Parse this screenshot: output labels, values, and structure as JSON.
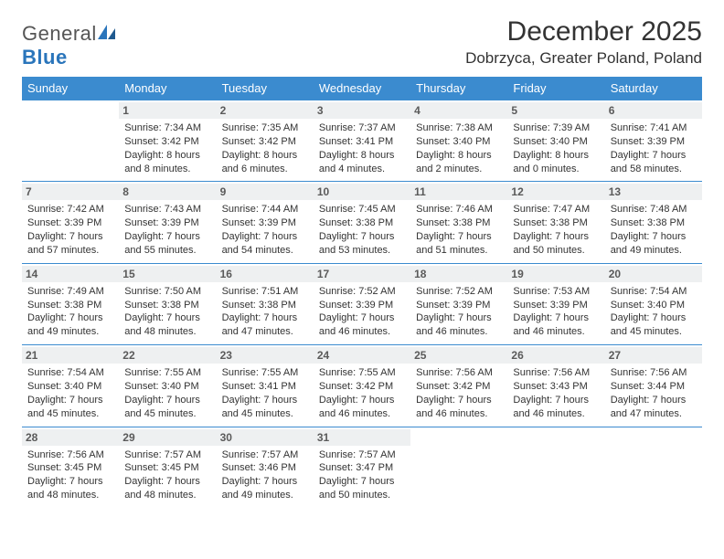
{
  "brand": {
    "name1": "General",
    "name2": "Blue"
  },
  "title": "December 2025",
  "location": "Dobrzyca, Greater Poland, Poland",
  "colors": {
    "accent": "#3b8bcf",
    "header_bg": "#3b8bcf",
    "daynum_bg": "#eef0f1",
    "text": "#333333",
    "brand_gray": "#555555",
    "brand_blue": "#2a75bb"
  },
  "typography": {
    "title_fontsize": 30,
    "location_fontsize": 17,
    "weekday_fontsize": 13,
    "daynum_fontsize": 12,
    "body_fontsize": 11
  },
  "weekdays": [
    "Sunday",
    "Monday",
    "Tuesday",
    "Wednesday",
    "Thursday",
    "Friday",
    "Saturday"
  ],
  "calendar": {
    "type": "table",
    "columns": 7,
    "rows": 5,
    "cells": [
      [
        null,
        {
          "day": "1",
          "sunrise": "Sunrise: 7:34 AM",
          "sunset": "Sunset: 3:42 PM",
          "daylight": "Daylight: 8 hours and 8 minutes."
        },
        {
          "day": "2",
          "sunrise": "Sunrise: 7:35 AM",
          "sunset": "Sunset: 3:42 PM",
          "daylight": "Daylight: 8 hours and 6 minutes."
        },
        {
          "day": "3",
          "sunrise": "Sunrise: 7:37 AM",
          "sunset": "Sunset: 3:41 PM",
          "daylight": "Daylight: 8 hours and 4 minutes."
        },
        {
          "day": "4",
          "sunrise": "Sunrise: 7:38 AM",
          "sunset": "Sunset: 3:40 PM",
          "daylight": "Daylight: 8 hours and 2 minutes."
        },
        {
          "day": "5",
          "sunrise": "Sunrise: 7:39 AM",
          "sunset": "Sunset: 3:40 PM",
          "daylight": "Daylight: 8 hours and 0 minutes."
        },
        {
          "day": "6",
          "sunrise": "Sunrise: 7:41 AM",
          "sunset": "Sunset: 3:39 PM",
          "daylight": "Daylight: 7 hours and 58 minutes."
        }
      ],
      [
        {
          "day": "7",
          "sunrise": "Sunrise: 7:42 AM",
          "sunset": "Sunset: 3:39 PM",
          "daylight": "Daylight: 7 hours and 57 minutes."
        },
        {
          "day": "8",
          "sunrise": "Sunrise: 7:43 AM",
          "sunset": "Sunset: 3:39 PM",
          "daylight": "Daylight: 7 hours and 55 minutes."
        },
        {
          "day": "9",
          "sunrise": "Sunrise: 7:44 AM",
          "sunset": "Sunset: 3:39 PM",
          "daylight": "Daylight: 7 hours and 54 minutes."
        },
        {
          "day": "10",
          "sunrise": "Sunrise: 7:45 AM",
          "sunset": "Sunset: 3:38 PM",
          "daylight": "Daylight: 7 hours and 53 minutes."
        },
        {
          "day": "11",
          "sunrise": "Sunrise: 7:46 AM",
          "sunset": "Sunset: 3:38 PM",
          "daylight": "Daylight: 7 hours and 51 minutes."
        },
        {
          "day": "12",
          "sunrise": "Sunrise: 7:47 AM",
          "sunset": "Sunset: 3:38 PM",
          "daylight": "Daylight: 7 hours and 50 minutes."
        },
        {
          "day": "13",
          "sunrise": "Sunrise: 7:48 AM",
          "sunset": "Sunset: 3:38 PM",
          "daylight": "Daylight: 7 hours and 49 minutes."
        }
      ],
      [
        {
          "day": "14",
          "sunrise": "Sunrise: 7:49 AM",
          "sunset": "Sunset: 3:38 PM",
          "daylight": "Daylight: 7 hours and 49 minutes."
        },
        {
          "day": "15",
          "sunrise": "Sunrise: 7:50 AM",
          "sunset": "Sunset: 3:38 PM",
          "daylight": "Daylight: 7 hours and 48 minutes."
        },
        {
          "day": "16",
          "sunrise": "Sunrise: 7:51 AM",
          "sunset": "Sunset: 3:38 PM",
          "daylight": "Daylight: 7 hours and 47 minutes."
        },
        {
          "day": "17",
          "sunrise": "Sunrise: 7:52 AM",
          "sunset": "Sunset: 3:39 PM",
          "daylight": "Daylight: 7 hours and 46 minutes."
        },
        {
          "day": "18",
          "sunrise": "Sunrise: 7:52 AM",
          "sunset": "Sunset: 3:39 PM",
          "daylight": "Daylight: 7 hours and 46 minutes."
        },
        {
          "day": "19",
          "sunrise": "Sunrise: 7:53 AM",
          "sunset": "Sunset: 3:39 PM",
          "daylight": "Daylight: 7 hours and 46 minutes."
        },
        {
          "day": "20",
          "sunrise": "Sunrise: 7:54 AM",
          "sunset": "Sunset: 3:40 PM",
          "daylight": "Daylight: 7 hours and 45 minutes."
        }
      ],
      [
        {
          "day": "21",
          "sunrise": "Sunrise: 7:54 AM",
          "sunset": "Sunset: 3:40 PM",
          "daylight": "Daylight: 7 hours and 45 minutes."
        },
        {
          "day": "22",
          "sunrise": "Sunrise: 7:55 AM",
          "sunset": "Sunset: 3:40 PM",
          "daylight": "Daylight: 7 hours and 45 minutes."
        },
        {
          "day": "23",
          "sunrise": "Sunrise: 7:55 AM",
          "sunset": "Sunset: 3:41 PM",
          "daylight": "Daylight: 7 hours and 45 minutes."
        },
        {
          "day": "24",
          "sunrise": "Sunrise: 7:55 AM",
          "sunset": "Sunset: 3:42 PM",
          "daylight": "Daylight: 7 hours and 46 minutes."
        },
        {
          "day": "25",
          "sunrise": "Sunrise: 7:56 AM",
          "sunset": "Sunset: 3:42 PM",
          "daylight": "Daylight: 7 hours and 46 minutes."
        },
        {
          "day": "26",
          "sunrise": "Sunrise: 7:56 AM",
          "sunset": "Sunset: 3:43 PM",
          "daylight": "Daylight: 7 hours and 46 minutes."
        },
        {
          "day": "27",
          "sunrise": "Sunrise: 7:56 AM",
          "sunset": "Sunset: 3:44 PM",
          "daylight": "Daylight: 7 hours and 47 minutes."
        }
      ],
      [
        {
          "day": "28",
          "sunrise": "Sunrise: 7:56 AM",
          "sunset": "Sunset: 3:45 PM",
          "daylight": "Daylight: 7 hours and 48 minutes."
        },
        {
          "day": "29",
          "sunrise": "Sunrise: 7:57 AM",
          "sunset": "Sunset: 3:45 PM",
          "daylight": "Daylight: 7 hours and 48 minutes."
        },
        {
          "day": "30",
          "sunrise": "Sunrise: 7:57 AM",
          "sunset": "Sunset: 3:46 PM",
          "daylight": "Daylight: 7 hours and 49 minutes."
        },
        {
          "day": "31",
          "sunrise": "Sunrise: 7:57 AM",
          "sunset": "Sunset: 3:47 PM",
          "daylight": "Daylight: 7 hours and 50 minutes."
        },
        null,
        null,
        null
      ]
    ]
  }
}
